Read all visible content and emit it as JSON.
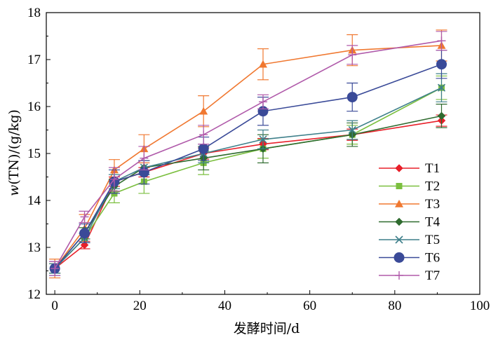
{
  "chart_data": {
    "type": "line",
    "xlabel": "发酵时间/d",
    "ylabel_italic": "w",
    "ylabel_rest": "(TN)/(g/kg)",
    "xlim": [
      -2,
      100
    ],
    "ylim": [
      12,
      18
    ],
    "xticks": [
      0,
      20,
      40,
      60,
      80,
      100
    ],
    "yticks": [
      12,
      13,
      14,
      15,
      16,
      17,
      18
    ],
    "grid": false,
    "legend_position": "lower-right",
    "x": [
      0,
      7,
      14,
      21,
      35,
      49,
      70,
      91
    ],
    "series": [
      {
        "name": "T1",
        "color": "#e8202a",
        "marker": "diamond",
        "values": [
          12.55,
          13.05,
          14.4,
          14.6,
          15.0,
          15.2,
          15.4,
          15.7
        ],
        "errors": [
          0.1,
          0.08,
          0.1,
          0.1,
          0.12,
          0.12,
          0.12,
          0.12
        ]
      },
      {
        "name": "T2",
        "color": "#7bbf3f",
        "marker": "square",
        "values": [
          12.55,
          13.2,
          14.15,
          14.4,
          14.8,
          15.1,
          15.4,
          16.4
        ],
        "errors": [
          0.1,
          0.1,
          0.2,
          0.25,
          0.25,
          0.2,
          0.2,
          0.25
        ]
      },
      {
        "name": "T3",
        "color": "#f07830",
        "marker": "triangle",
        "values": [
          12.55,
          13.4,
          14.65,
          15.1,
          15.9,
          16.9,
          17.2,
          17.3
        ],
        "errors": [
          0.2,
          0.3,
          0.22,
          0.3,
          0.33,
          0.33,
          0.33,
          0.33
        ]
      },
      {
        "name": "T4",
        "color": "#2f6b2f",
        "marker": "diamond",
        "values": [
          12.55,
          13.3,
          14.3,
          14.7,
          14.9,
          15.1,
          15.4,
          15.8
        ],
        "errors": [
          0.1,
          0.12,
          0.15,
          0.15,
          0.25,
          0.3,
          0.25,
          0.25
        ]
      },
      {
        "name": "T5",
        "color": "#3d7f8a",
        "marker": "x",
        "values": [
          12.55,
          13.2,
          14.4,
          14.7,
          15.0,
          15.3,
          15.5,
          16.4
        ],
        "errors": [
          0.1,
          0.1,
          0.15,
          0.15,
          0.2,
          0.2,
          0.2,
          0.3
        ]
      },
      {
        "name": "T6",
        "color": "#3a4a98",
        "marker": "circle",
        "values": [
          12.55,
          13.3,
          14.4,
          14.6,
          15.1,
          15.9,
          16.2,
          16.9
        ],
        "errors": [
          0.15,
          0.2,
          0.25,
          0.25,
          0.25,
          0.3,
          0.3,
          0.3
        ]
      },
      {
        "name": "T7",
        "color": "#b05aaa",
        "marker": "plus",
        "values": [
          12.55,
          13.65,
          14.45,
          14.9,
          15.4,
          16.1,
          17.1,
          17.4
        ],
        "errors": [
          0.15,
          0.12,
          0.25,
          0.25,
          0.2,
          0.15,
          0.2,
          0.2
        ]
      }
    ]
  }
}
